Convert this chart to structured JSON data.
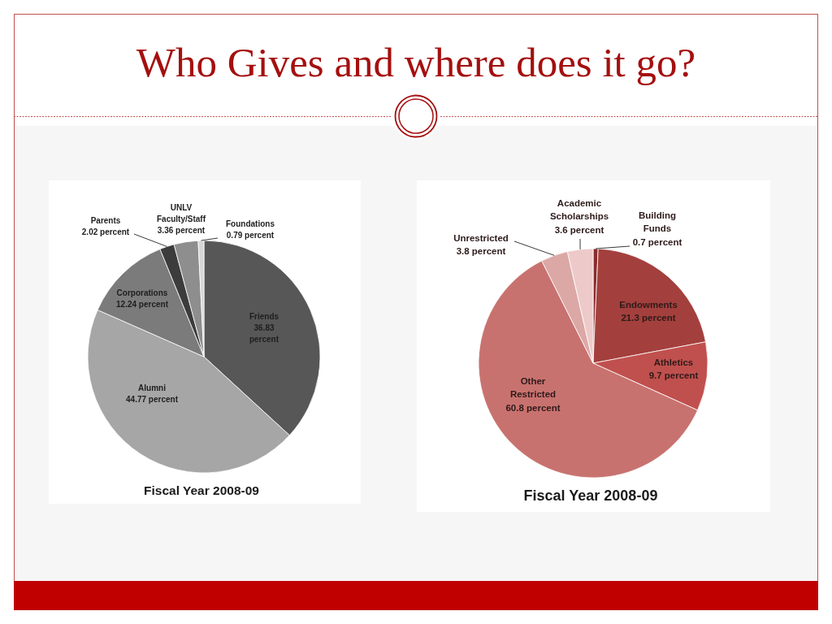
{
  "chart_data": [
    {
      "type": "pie",
      "title": "Fiscal Year 2008-09",
      "annotations": [
        "Who Gives and where does it go?"
      ],
      "categories": [
        "Friends",
        "Alumni",
        "Corporations",
        "Parents",
        "UNLV Faculty/Staff",
        "Foundations"
      ],
      "values": [
        36.83,
        44.77,
        12.24,
        2.02,
        3.36,
        0.79
      ],
      "value_labels": [
        "36.83 percent",
        "44.77 percent",
        "12.24 percent",
        "2.02 percent",
        "3.36 percent",
        "0.79 percent"
      ],
      "colors": [
        "#575757",
        "#a6a6a6",
        "#7b7b7b",
        "#3c3c3c",
        "#8e8e8e",
        "#d6d6d6"
      ]
    },
    {
      "type": "pie",
      "title": "Fiscal Year 2008-09",
      "categories": [
        "Building Funds",
        "Endowments",
        "Athletics",
        "Other Restricted",
        "Unrestricted",
        "Academic Scholarships"
      ],
      "values": [
        0.7,
        21.3,
        9.7,
        60.8,
        3.8,
        3.6
      ],
      "value_labels": [
        "0.7 percent",
        "21.3 percent",
        "9.7 percent",
        "60.8 percent",
        "3.8 percent",
        "3.6 percent"
      ],
      "colors": [
        "#8a2c2a",
        "#a3403d",
        "#c0504d",
        "#c8726f",
        "#dca8a6",
        "#edcac9"
      ]
    }
  ]
}
